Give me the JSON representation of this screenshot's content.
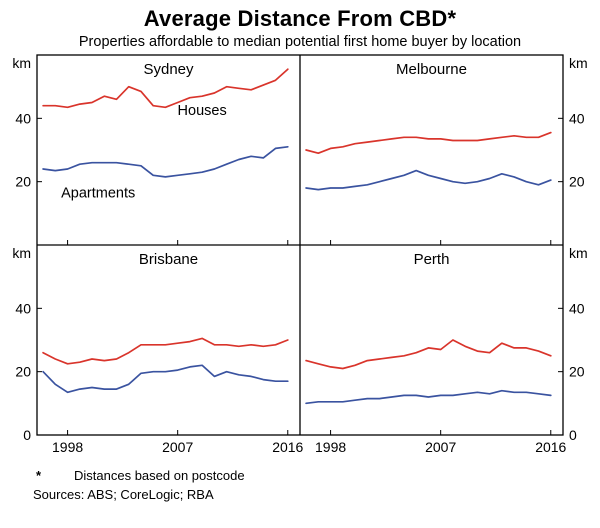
{
  "title": "Average Distance From CBD*",
  "subtitle": "Properties affordable to median potential first home buyer by location",
  "footnote_marker": "*",
  "footnote_text": "Distances based on postcode",
  "sources": "Sources: ABS; CoreLogic; RBA",
  "chart_data": {
    "type": "line",
    "unit": "km",
    "x": [
      1996,
      1997,
      1998,
      1999,
      2000,
      2001,
      2002,
      2003,
      2004,
      2005,
      2006,
      2007,
      2008,
      2009,
      2010,
      2011,
      2012,
      2013,
      2014,
      2015,
      2016
    ],
    "x_domain": [
      1995.5,
      2017
    ],
    "y_domain": [
      0,
      60
    ],
    "x_ticks": [
      1998,
      2007,
      2016
    ],
    "row_y_ticks": [
      [
        20,
        40
      ],
      [
        0,
        20,
        40
      ]
    ],
    "grid": false,
    "legend_position": "in-panel-labels",
    "colors": {
      "houses": "#d9342b",
      "apartments": "#3a53a0"
    },
    "panels": [
      {
        "title": "Sydney",
        "row": 0,
        "col": 0,
        "series": [
          {
            "name": "Houses",
            "color_key": "houses",
            "values": [
              44,
              44,
              43.5,
              44.5,
              45,
              47,
              46,
              50,
              48.5,
              44,
              43.5,
              45,
              46.5,
              47,
              48,
              50,
              49.5,
              49,
              50.5,
              52,
              55.5
            ]
          },
          {
            "name": "Apartments",
            "color_key": "apartments",
            "values": [
              24,
              23.5,
              24,
              25.5,
              26,
              26,
              26,
              25.5,
              25,
              22,
              21.5,
              22,
              22.5,
              23,
              24,
              25.5,
              27,
              28,
              27.5,
              30.5,
              31
            ]
          }
        ],
        "labels": [
          {
            "text": "Houses",
            "x": 2009,
            "y": 41,
            "color_key": "houses"
          },
          {
            "text": "Apartments",
            "x": 2000.5,
            "y": 15,
            "color_key": "apartments"
          }
        ]
      },
      {
        "title": "Melbourne",
        "row": 0,
        "col": 1,
        "series": [
          {
            "name": "Houses",
            "color_key": "houses",
            "values": [
              30,
              29,
              30.5,
              31,
              32,
              32.5,
              33,
              33.5,
              34,
              34,
              33.5,
              33.5,
              33,
              33,
              33,
              33.5,
              34,
              34.5,
              34,
              34,
              35.5
            ]
          },
          {
            "name": "Apartments",
            "color_key": "apartments",
            "values": [
              18,
              17.5,
              18,
              18,
              18.5,
              19,
              20,
              21,
              22,
              23.5,
              22,
              21,
              20,
              19.5,
              20,
              21,
              22.5,
              21.5,
              20,
              19,
              20.5
            ]
          }
        ],
        "labels": []
      },
      {
        "title": "Brisbane",
        "row": 1,
        "col": 0,
        "series": [
          {
            "name": "Houses",
            "color_key": "houses",
            "values": [
              26,
              24,
              22.5,
              23,
              24,
              23.5,
              24,
              26,
              28.5,
              28.5,
              28.5,
              29,
              29.5,
              30.5,
              28.5,
              28.5,
              28,
              28.5,
              28,
              28.5,
              30
            ]
          },
          {
            "name": "Apartments",
            "color_key": "apartments",
            "values": [
              20,
              16,
              13.5,
              14.5,
              15,
              14.5,
              14.5,
              16,
              19.5,
              20,
              20,
              20.5,
              21.5,
              22,
              18.5,
              20,
              19,
              18.5,
              17.5,
              17,
              17
            ]
          }
        ],
        "labels": []
      },
      {
        "title": "Perth",
        "row": 1,
        "col": 1,
        "series": [
          {
            "name": "Houses",
            "color_key": "houses",
            "values": [
              23.5,
              22.5,
              21.5,
              21,
              22,
              23.5,
              24,
              24.5,
              25,
              26,
              27.5,
              27,
              30,
              28,
              26.5,
              26,
              29,
              27.5,
              27.5,
              26.5,
              25
            ]
          },
          {
            "name": "Apartments",
            "color_key": "apartments",
            "values": [
              10,
              10.5,
              10.5,
              10.5,
              11,
              11.5,
              11.5,
              12,
              12.5,
              12.5,
              12,
              12.5,
              12.5,
              13,
              13.5,
              13,
              14,
              13.5,
              13.5,
              13,
              12.5
            ]
          }
        ],
        "labels": []
      }
    ]
  }
}
